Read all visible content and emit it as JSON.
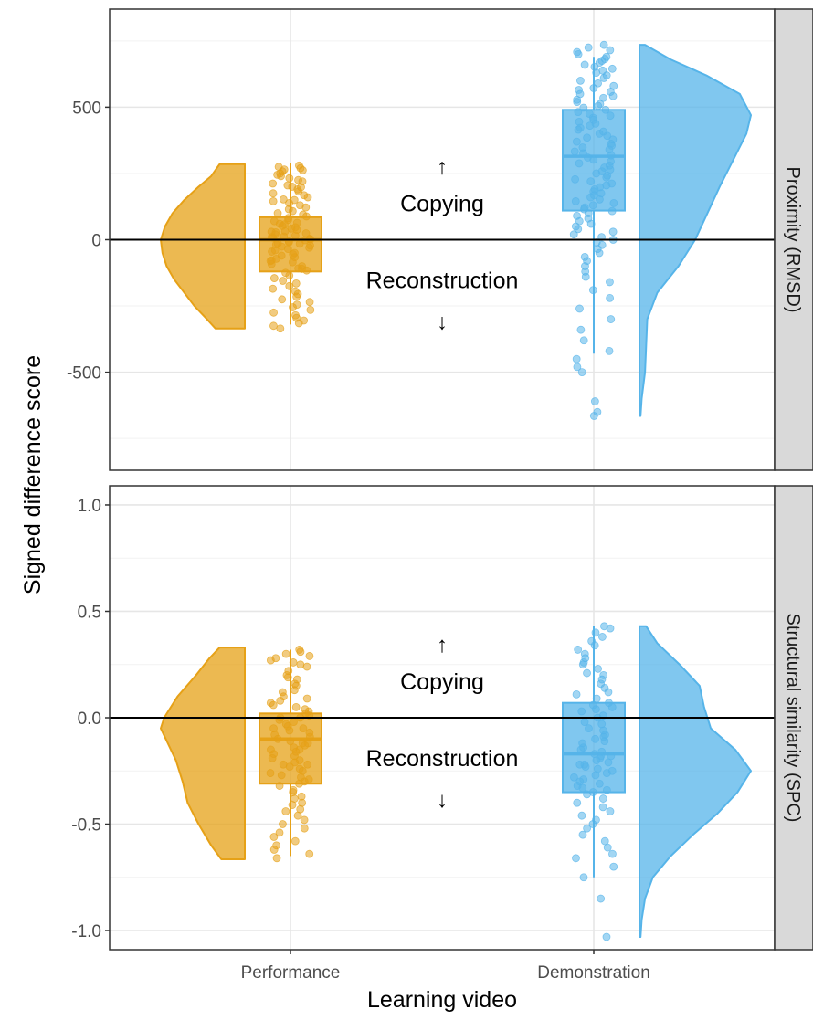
{
  "chart_data": {
    "type": "raincloud",
    "xlabel": "Learning video",
    "ylabel": "Signed difference score",
    "categories": [
      "Performance",
      "Demonstration"
    ],
    "colors": {
      "Performance": "#e6a117",
      "Demonstration": "#56b4e9"
    },
    "grid": true,
    "reference_line": 0,
    "panels": [
      {
        "strip": "Proximity (RMSD)",
        "ylim": [
          -870,
          870
        ],
        "y_ticks": [
          -500,
          0,
          500
        ],
        "y_tick_labels": [
          "-500",
          "0",
          "500"
        ],
        "annotations": {
          "up_arrow": "↑",
          "up_text": "Copying",
          "down_text": "Reconstruction",
          "down_arrow": "↓"
        },
        "series": [
          {
            "name": "Performance",
            "box": {
              "q1": -120,
              "median": 0,
              "q3": 85,
              "whisker_low": -320,
              "whisker_high": 290
            },
            "density": [
              [
                -335,
                0.35
              ],
              [
                -300,
                0.45
              ],
              [
                -250,
                0.6
              ],
              [
                -200,
                0.72
              ],
              [
                -150,
                0.84
              ],
              [
                -100,
                0.93
              ],
              [
                -50,
                0.98
              ],
              [
                0,
                1.0
              ],
              [
                50,
                0.95
              ],
              [
                100,
                0.86
              ],
              [
                150,
                0.72
              ],
              [
                200,
                0.55
              ],
              [
                240,
                0.4
              ],
              [
                285,
                0.3
              ]
            ],
            "points": [
              280,
              275,
              270,
              265,
              262,
              258,
              250,
              245,
              240,
              232,
              225,
              220,
              212,
              205,
              198,
              190,
              182,
              175,
              168,
              160,
              152,
              145,
              138,
              130,
              122,
              115,
              108,
              100,
              95,
              88,
              82,
              75,
              70,
              64,
              58,
              52,
              47,
              42,
              37,
              32,
              28,
              24,
              20,
              16,
              12,
              8,
              4,
              1,
              -2,
              -6,
              -10,
              -14,
              -18,
              -22,
              -26,
              -30,
              -35,
              -40,
              -45,
              -50,
              -55,
              -60,
              -66,
              -72,
              -78,
              -85,
              -92,
              -100,
              -108,
              -116,
              -125,
              -135,
              -145,
              -155,
              -165,
              -175,
              -185,
              -195,
              -205,
              -215,
              -225,
              -235,
              -245,
              -255,
              -265,
              -275,
              -285,
              -295,
              -305,
              -315,
              -325,
              -335,
              150,
              60,
              -15,
              -80,
              200,
              10,
              -110,
              30
            ]
          },
          {
            "name": "Demonstration",
            "box": {
              "q1": 110,
              "median": 315,
              "q3": 490,
              "whisker_low": -430,
              "whisker_high": 690
            },
            "density": [
              [
                -665,
                0.01
              ],
              [
                -600,
                0.02
              ],
              [
                -500,
                0.05
              ],
              [
                -400,
                0.06
              ],
              [
                -300,
                0.07
              ],
              [
                -200,
                0.16
              ],
              [
                -100,
                0.35
              ],
              [
                0,
                0.5
              ],
              [
                100,
                0.61
              ],
              [
                200,
                0.72
              ],
              [
                300,
                0.84
              ],
              [
                400,
                0.96
              ],
              [
                470,
                1.0
              ],
              [
                550,
                0.9
              ],
              [
                620,
                0.6
              ],
              [
                680,
                0.28
              ],
              [
                735,
                0.05
              ]
            ],
            "points": [
              735,
              725,
              715,
              708,
              700,
              690,
              682,
              675,
              668,
              660,
              652,
              645,
              638,
              630,
              620,
              610,
              600,
              590,
              580,
              572,
              565,
              558,
              550,
              542,
              535,
              528,
              520,
              512,
              505,
              498,
              490,
              482,
              475,
              468,
              460,
              452,
              445,
              438,
              430,
              422,
              415,
              408,
              400,
              392,
              385,
              378,
              370,
              362,
              355,
              348,
              340,
              333,
              326,
              318,
              310,
              302,
              295,
              288,
              280,
              272,
              265,
              258,
              250,
              242,
              235,
              228,
              220,
              212,
              205,
              198,
              190,
              182,
              175,
              168,
              160,
              152,
              145,
              138,
              130,
              122,
              115,
              108,
              100,
              90,
              80,
              70,
              60,
              50,
              40,
              30,
              20,
              10,
              0,
              -10,
              -20,
              -35,
              -50,
              -65,
              -80,
              -100,
              -120,
              -140,
              -160,
              -190,
              -220,
              -260,
              -300,
              -340,
              -380,
              -420,
              -450,
              -480,
              -500,
              -610,
              -650,
              -665
            ]
          }
        ]
      },
      {
        "strip": "Structural similarity (SPC)",
        "ylim": [
          -1.09,
          1.09
        ],
        "y_ticks": [
          -1.0,
          -0.5,
          0.0,
          0.5,
          1.0
        ],
        "y_tick_labels": [
          "-1.0",
          "-0.5",
          "0.0",
          "0.5",
          "1.0"
        ],
        "annotations": {
          "up_arrow": "↑",
          "up_text": "Copying",
          "down_text": "Reconstruction",
          "down_arrow": "↓"
        },
        "series": [
          {
            "name": "Performance",
            "box": {
              "q1": -0.31,
              "median": -0.1,
              "q3": 0.02,
              "whisker_low": -0.65,
              "whisker_high": 0.32
            },
            "density": [
              [
                -0.665,
                0.28
              ],
              [
                -0.6,
                0.4
              ],
              [
                -0.5,
                0.55
              ],
              [
                -0.4,
                0.68
              ],
              [
                -0.3,
                0.74
              ],
              [
                -0.2,
                0.82
              ],
              [
                -0.1,
                0.94
              ],
              [
                -0.05,
                1.0
              ],
              [
                0.0,
                0.96
              ],
              [
                0.1,
                0.8
              ],
              [
                0.2,
                0.58
              ],
              [
                0.28,
                0.42
              ],
              [
                0.33,
                0.3
              ]
            ],
            "points": [
              0.32,
              0.31,
              0.3,
              0.29,
              0.28,
              0.27,
              0.26,
              0.25,
              0.24,
              0.22,
              0.2,
              0.19,
              0.18,
              0.16,
              0.15,
              0.13,
              0.12,
              0.1,
              0.09,
              0.07,
              0.06,
              0.05,
              0.04,
              0.03,
              0.02,
              0.01,
              0.0,
              -0.01,
              -0.02,
              -0.03,
              -0.04,
              -0.05,
              -0.06,
              -0.07,
              -0.08,
              -0.09,
              -0.1,
              -0.11,
              -0.12,
              -0.13,
              -0.14,
              -0.15,
              -0.16,
              -0.17,
              -0.18,
              -0.19,
              -0.2,
              -0.21,
              -0.22,
              -0.23,
              -0.24,
              -0.25,
              -0.26,
              -0.27,
              -0.28,
              -0.29,
              -0.3,
              -0.31,
              -0.32,
              -0.34,
              -0.35,
              -0.37,
              -0.38,
              -0.4,
              -0.41,
              -0.43,
              -0.44,
              -0.46,
              -0.48,
              -0.5,
              -0.52,
              -0.54,
              -0.56,
              -0.58,
              -0.6,
              -0.62,
              -0.64,
              -0.66,
              -0.05,
              -0.15,
              0.08,
              -0.22,
              -0.12,
              0.0
            ]
          },
          {
            "name": "Demonstration",
            "box": {
              "q1": -0.35,
              "median": -0.17,
              "q3": 0.07,
              "whisker_low": -0.75,
              "whisker_high": 0.43
            },
            "density": [
              [
                -1.03,
                0.01
              ],
              [
                -0.95,
                0.02
              ],
              [
                -0.85,
                0.05
              ],
              [
                -0.75,
                0.12
              ],
              [
                -0.65,
                0.28
              ],
              [
                -0.55,
                0.48
              ],
              [
                -0.45,
                0.7
              ],
              [
                -0.35,
                0.88
              ],
              [
                -0.25,
                1.0
              ],
              [
                -0.15,
                0.86
              ],
              [
                -0.05,
                0.64
              ],
              [
                0.05,
                0.58
              ],
              [
                0.15,
                0.54
              ],
              [
                0.25,
                0.36
              ],
              [
                0.35,
                0.16
              ],
              [
                0.43,
                0.06
              ]
            ],
            "points": [
              0.43,
              0.42,
              0.4,
              0.38,
              0.36,
              0.34,
              0.32,
              0.3,
              0.28,
              0.26,
              0.25,
              0.23,
              0.21,
              0.2,
              0.18,
              0.16,
              0.14,
              0.12,
              0.11,
              0.09,
              0.07,
              0.06,
              0.04,
              0.03,
              0.01,
              0.0,
              -0.02,
              -0.03,
              -0.05,
              -0.06,
              -0.08,
              -0.09,
              -0.11,
              -0.12,
              -0.14,
              -0.15,
              -0.16,
              -0.17,
              -0.18,
              -0.19,
              -0.2,
              -0.21,
              -0.22,
              -0.23,
              -0.24,
              -0.25,
              -0.26,
              -0.27,
              -0.28,
              -0.29,
              -0.3,
              -0.31,
              -0.32,
              -0.33,
              -0.34,
              -0.35,
              -0.36,
              -0.38,
              -0.4,
              -0.42,
              -0.44,
              -0.46,
              -0.48,
              -0.5,
              -0.52,
              -0.55,
              -0.58,
              -0.61,
              -0.64,
              -0.66,
              -0.7,
              -0.75,
              -0.85,
              -1.03,
              -0.18,
              -0.22,
              0.05,
              -0.1
            ]
          }
        ]
      }
    ]
  }
}
